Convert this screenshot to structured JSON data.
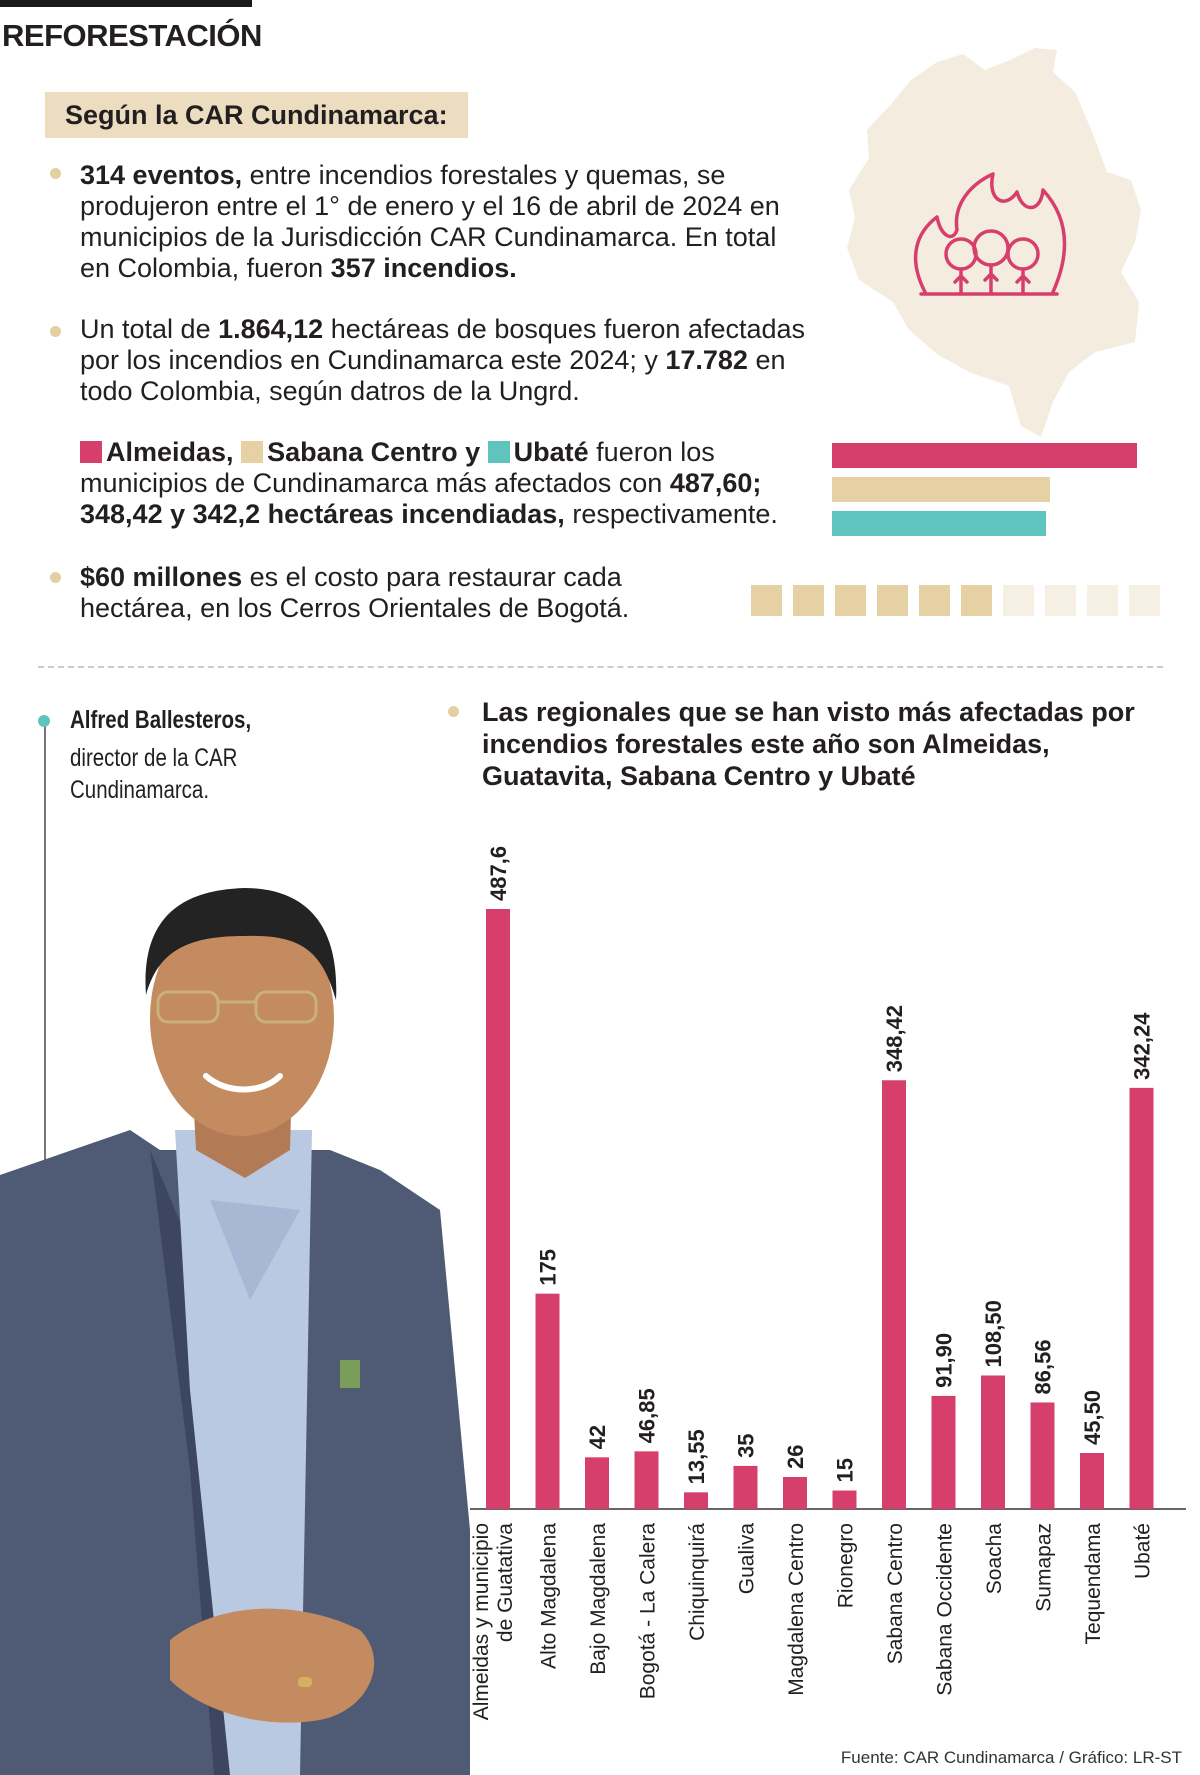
{
  "header": {
    "section": "REFORESTACIÓN",
    "tag": "Según la CAR Cundinamarca:"
  },
  "facts": {
    "p1_b1": "314 eventos,",
    "p1_t1": " entre incendios forestales y quemas, se produjeron entre el 1° de enero y el 16 de abril de 2024 en municipios de la Jurisdicción CAR Cundinamarca. En total en Colombia, fueron ",
    "p1_b2": "357 incendios.",
    "p2_t1": "Un total de ",
    "p2_b1": "1.864,12",
    "p2_t2": " hectáreas de bosques fueron afectadas por los incendios en Cundinamarca este 2024; y ",
    "p2_b2": "17.782",
    "p2_t3": " en todo Colombia, según datros de la Ungrd.",
    "p3_b1": "Almeidas,",
    "p3_b2": "Sabana Centro y",
    "p3_b3": "Ubaté",
    "p3_t1": " fueron los municipios de Cundinamarca más afectados con ",
    "p3_b4": "487,60;",
    "p3_b5": "348,42 y 342,2 hectáreas incendiadas,",
    "p3_t2": " respectivamente.",
    "p4_b1": "$60 millones",
    "p4_t1": " es el costo para restaurar cada hectárea, en los Cerros Orientales de Bogotá."
  },
  "highlight_bars": [
    {
      "name": "Almeidas",
      "value": 487.6,
      "color": "#d63f6c"
    },
    {
      "name": "Sabana Centro",
      "value": 348.42,
      "color": "#e6d1a5"
    },
    {
      "name": "Ubaté",
      "value": 342.2,
      "color": "#5fc4bd"
    }
  ],
  "cost_squares": {
    "total": 10,
    "filled": 6,
    "filled_color": "#e6d1a5",
    "empty_color": "#f6efe3"
  },
  "person": {
    "name": "Alfred Ballesteros,",
    "role_line1": "director de la CAR",
    "role_line2": "Cundinamarca."
  },
  "chart_data": {
    "type": "bar",
    "title": "Las regionales que se han visto más afectadas por incendios forestales este año son Almeidas, Guatavita, Sabana Centro y Ubaté",
    "categories": [
      "Almeidas y municipio de Guatativa",
      "Alto Magdalena",
      "Bajo Magdalena",
      "Bogotá - La Calera",
      "Chiquinquirá",
      "Gualiva",
      "Magdalena Centro",
      "Rionegro",
      "Sabana Centro",
      "Sabana Occidente",
      "Soacha",
      "Sumapaz",
      "Tequendama",
      "Ubaté"
    ],
    "category_lines": [
      [
        "Almeidas y municipio",
        "de Guatativa"
      ],
      [
        "Alto Magdalena"
      ],
      [
        "Bajo Magdalena"
      ],
      [
        "Bogotá - La Calera"
      ],
      [
        "Chiquinquirá"
      ],
      [
        "Gualiva"
      ],
      [
        "Magdalena Centro"
      ],
      [
        "Rionegro"
      ],
      [
        "Sabana Centro"
      ],
      [
        "Sabana Occidente"
      ],
      [
        "Soacha"
      ],
      [
        "Sumapaz"
      ],
      [
        "Tequendama"
      ],
      [
        "Ubaté"
      ]
    ],
    "values": [
      487.6,
      175,
      42,
      46.85,
      13.55,
      35,
      26,
      15,
      348.42,
      91.9,
      108.5,
      86.56,
      45.5,
      342.24
    ],
    "value_labels": [
      "487,6",
      "175",
      "42",
      "46,85",
      "13,55",
      "35",
      "26",
      "15",
      "348,42",
      "91,90",
      "108,50",
      "86,56",
      "45,50",
      "342,24"
    ],
    "bar_color": "#d63f6c",
    "ylim": [
      0,
      487.6
    ],
    "grid": false,
    "legend": "none"
  },
  "source": "Fuente: CAR Cundinamarca / Gráfico: LR-ST",
  "icons": {
    "map": "colombia-map-icon",
    "fire": "forest-fire-icon",
    "photo": "person-photo"
  }
}
